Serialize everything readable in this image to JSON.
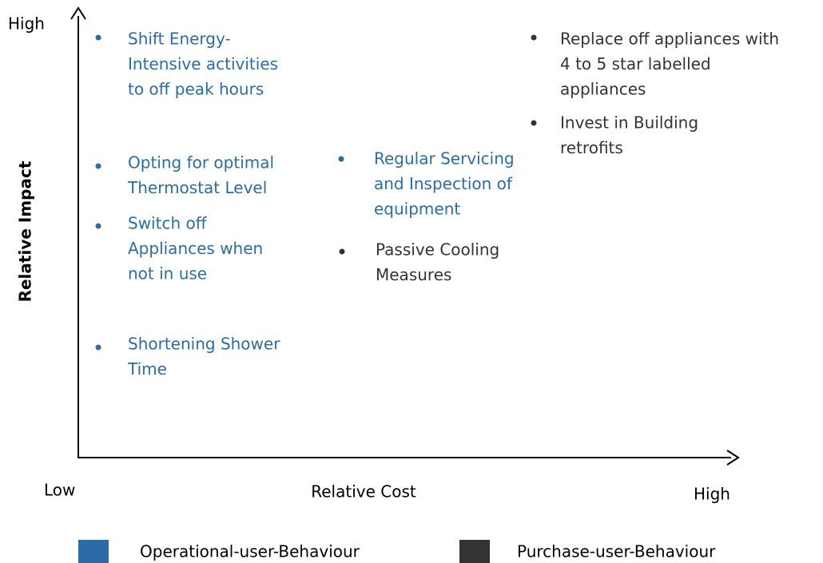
{
  "axes": {
    "y_high": "High",
    "y_title": "Relative Impact",
    "x_low": "Low",
    "x_title": "Relative Cost",
    "x_high": "High"
  },
  "legend": [
    {
      "name": "Operational-user-Behaviour",
      "color": "#2b6ca8"
    },
    {
      "name": "Purchase-user-Behaviour",
      "color": "#333333"
    }
  ],
  "items": [
    {
      "lines": [
        "Shift Energy-",
        "Intensive activities",
        "to off peak hours"
      ],
      "group": 0
    },
    {
      "lines": [
        "Opting for optimal",
        "Thermostat Level"
      ],
      "group": 0
    },
    {
      "lines": [
        "Switch off",
        "Appliances when",
        "not in use"
      ],
      "group": 0
    },
    {
      "lines": [
        "Shortening Shower",
        "Time"
      ],
      "group": 0
    },
    {
      "lines": [
        "Regular Servicing",
        "and Inspection of",
        "equipment"
      ],
      "group": 0
    },
    {
      "lines": [
        "Passive Cooling",
        "Measures"
      ],
      "group": 1
    },
    {
      "lines": [
        "Replace off appliances with",
        "4 to 5 star labelled",
        "appliances"
      ],
      "group": 1
    },
    {
      "lines": [
        "Invest in Building",
        "retrofits"
      ],
      "group": 1
    }
  ]
}
